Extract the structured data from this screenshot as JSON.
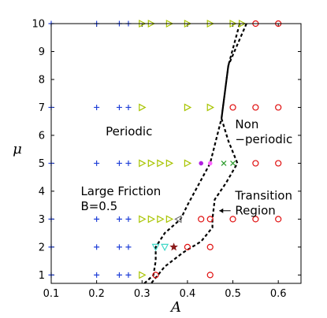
{
  "chart_data": {
    "type": "scatter",
    "xlabel": "A",
    "ylabel": "μ",
    "xlim": [
      0.1,
      0.65
    ],
    "ylim": [
      0.7,
      10
    ],
    "xticks": [
      0.1,
      0.2,
      0.3,
      0.4,
      0.5,
      0.6
    ],
    "xtick_labels": [
      "0.1",
      "0.2",
      "0.3",
      "0.4",
      "0.5",
      "0.6"
    ],
    "yticks": [
      1,
      2,
      3,
      4,
      5,
      6,
      7,
      8,
      9,
      10
    ],
    "ytick_labels": [
      "1",
      "2",
      "3",
      "4",
      "5",
      "6",
      "7",
      "8",
      "9",
      "10"
    ],
    "grid": false,
    "legend": "none",
    "annotations": [
      {
        "name": "periodic-label",
        "lines": [
          "Periodic"
        ],
        "x": 0.22,
        "y": 6.0
      },
      {
        "name": "large-friction-label",
        "lines": [
          "Large Friction",
          "B=0.5"
        ],
        "x": 0.165,
        "y": 3.85
      },
      {
        "name": "non-periodic-label",
        "lines": [
          "Non",
          "−periodic"
        ],
        "x": 0.505,
        "y": 6.25
      },
      {
        "name": "transition-region-label",
        "lines": [
          "Transition",
          "Region"
        ],
        "x": 0.505,
        "y": 3.7
      }
    ],
    "arrow": {
      "from": [
        0.495,
        3.3
      ],
      "to": [
        0.47,
        3.3
      ]
    },
    "boundary_left": [
      [
        0.305,
        0.7
      ],
      [
        0.325,
        1.0
      ],
      [
        0.33,
        1.5
      ],
      [
        0.33,
        2.0
      ],
      [
        0.35,
        2.5
      ],
      [
        0.385,
        3.0
      ],
      [
        0.4,
        3.5
      ],
      [
        0.45,
        5.0
      ],
      [
        0.475,
        6.6
      ],
      [
        0.49,
        8.5
      ],
      [
        0.515,
        10.0
      ]
    ],
    "boundary_right": [
      [
        0.53,
        10.0
      ],
      [
        0.49,
        8.5
      ],
      [
        0.475,
        6.6
      ],
      [
        0.49,
        5.8
      ],
      [
        0.51,
        5.0
      ],
      [
        0.485,
        4.3
      ],
      [
        0.46,
        3.7
      ],
      [
        0.455,
        3.0
      ],
      [
        0.455,
        2.7
      ],
      [
        0.43,
        2.2
      ],
      [
        0.39,
        1.8
      ],
      [
        0.35,
        1.3
      ],
      [
        0.32,
        0.7
      ]
    ],
    "series": [
      {
        "marker": "plus",
        "color": "#1f3fd8",
        "points": [
          [
            0.1,
            1
          ],
          [
            0.1,
            2
          ],
          [
            0.1,
            3
          ],
          [
            0.1,
            5
          ],
          [
            0.1,
            7
          ],
          [
            0.1,
            10
          ],
          [
            0.2,
            1
          ],
          [
            0.2,
            2
          ],
          [
            0.2,
            3
          ],
          [
            0.2,
            5
          ],
          [
            0.2,
            7
          ],
          [
            0.2,
            10
          ],
          [
            0.25,
            1
          ],
          [
            0.25,
            2
          ],
          [
            0.25,
            3
          ],
          [
            0.25,
            5
          ],
          [
            0.25,
            7
          ],
          [
            0.25,
            10
          ],
          [
            0.27,
            1
          ],
          [
            0.27,
            2
          ],
          [
            0.27,
            3
          ],
          [
            0.27,
            5
          ],
          [
            0.27,
            7
          ],
          [
            0.27,
            10
          ]
        ]
      },
      {
        "marker": "triangle-right",
        "color": "#a8c400",
        "points": [
          [
            0.3,
            1
          ],
          [
            0.3,
            3
          ],
          [
            0.3,
            5
          ],
          [
            0.3,
            7
          ],
          [
            0.3,
            10
          ],
          [
            0.32,
            3
          ],
          [
            0.32,
            5
          ],
          [
            0.32,
            10
          ],
          [
            0.34,
            3
          ],
          [
            0.34,
            5
          ],
          [
            0.36,
            3
          ],
          [
            0.36,
            5
          ],
          [
            0.36,
            10
          ],
          [
            0.4,
            5
          ],
          [
            0.4,
            7
          ],
          [
            0.4,
            10
          ],
          [
            0.45,
            7
          ],
          [
            0.45,
            10
          ],
          [
            0.5,
            10
          ],
          [
            0.52,
            10
          ]
        ]
      },
      {
        "marker": "circle",
        "color": "#e01010",
        "points": [
          [
            0.33,
            1
          ],
          [
            0.4,
            2
          ],
          [
            0.45,
            1
          ],
          [
            0.45,
            2
          ],
          [
            0.43,
            3
          ],
          [
            0.45,
            3
          ],
          [
            0.5,
            3
          ],
          [
            0.55,
            3
          ],
          [
            0.6,
            3
          ],
          [
            0.55,
            5
          ],
          [
            0.6,
            5
          ],
          [
            0.5,
            7
          ],
          [
            0.55,
            7
          ],
          [
            0.6,
            7
          ],
          [
            0.55,
            10
          ],
          [
            0.6,
            10
          ]
        ]
      },
      {
        "marker": "triangle-down",
        "color": "#40d8c8",
        "points": [
          [
            0.33,
            2
          ],
          [
            0.35,
            2
          ]
        ]
      },
      {
        "marker": "star",
        "color": "#8b1a1a",
        "points": [
          [
            0.37,
            2
          ]
        ]
      },
      {
        "marker": "triangle-left",
        "color": "#707070",
        "points": [
          [
            0.38,
            3
          ]
        ]
      },
      {
        "marker": "dot",
        "color": "#b020e0",
        "points": [
          [
            0.43,
            5
          ]
        ]
      },
      {
        "marker": "dot",
        "color": "#ff66ff",
        "points": [
          [
            0.45,
            5
          ]
        ]
      },
      {
        "marker": "x",
        "color": "#2a9a2a",
        "points": [
          [
            0.48,
            5
          ],
          [
            0.5,
            5
          ]
        ]
      }
    ]
  }
}
